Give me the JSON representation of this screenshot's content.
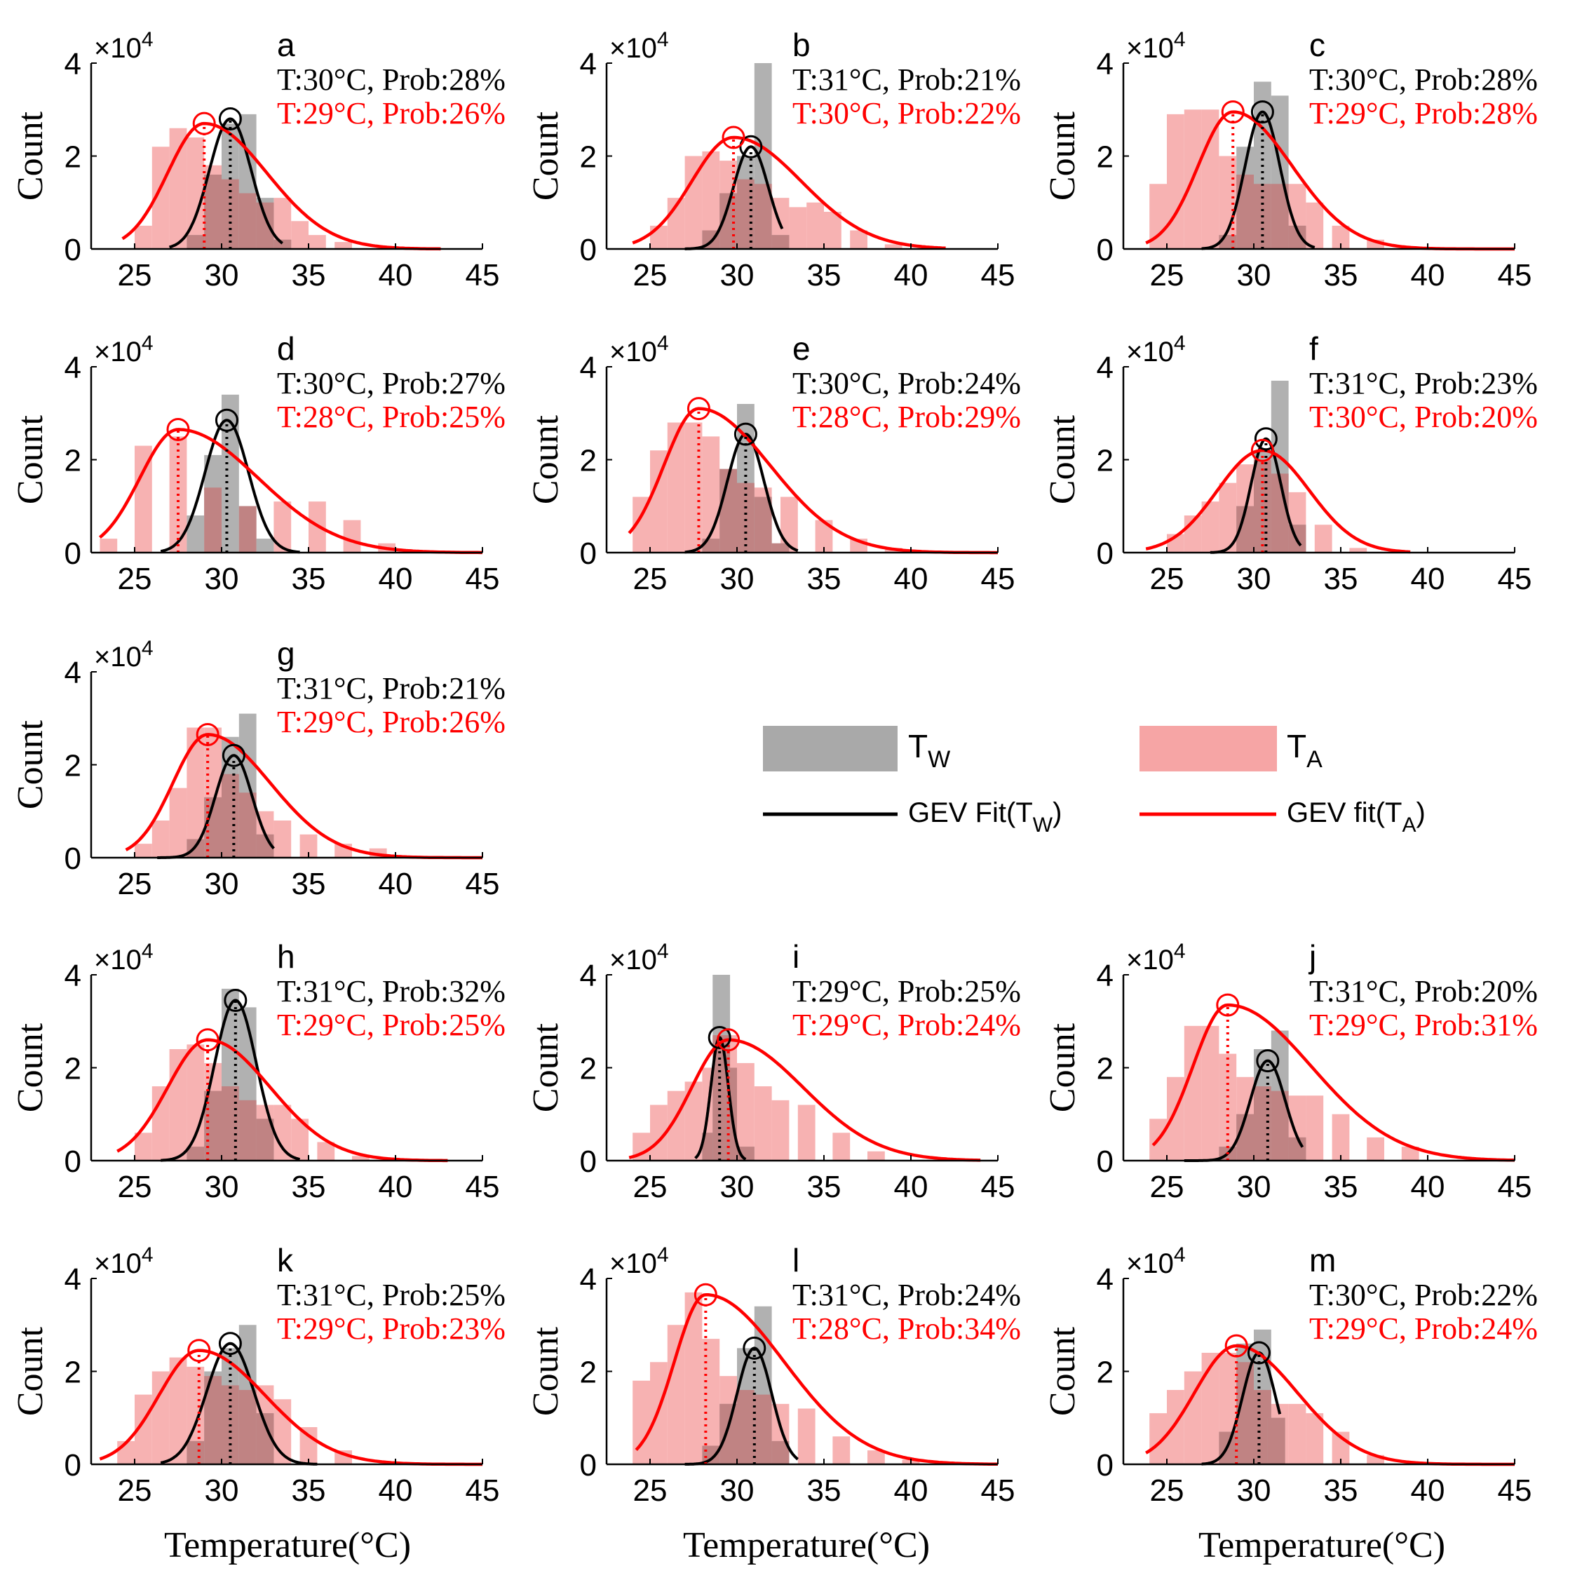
{
  "figure": {
    "xlabel": "Temperature(°C)",
    "ylabel": "Count",
    "exponent_base": "×10",
    "exponent_power": "4",
    "x_ticks": [
      "25",
      "30",
      "35",
      "40",
      "45"
    ],
    "y_ticks": [
      "0",
      "2",
      "4"
    ],
    "xlim": [
      22.5,
      45
    ],
    "ylim": [
      0,
      4
    ],
    "colors": {
      "tw_bar": "#a9a9a9",
      "ta_bar": "#f6a5a5",
      "overlap_bar": "#c37c7c",
      "tw_fit": "#000000",
      "ta_fit": "#ff0000"
    }
  },
  "legend": {
    "tw_bar_label": "T",
    "tw_bar_sub": "W",
    "ta_bar_label": "T",
    "ta_bar_sub": "A",
    "tw_fit_label": "GEV Fit(T",
    "tw_fit_sub": "W",
    "tw_fit_close": ")",
    "ta_fit_label": "GEV fit(T",
    "ta_fit_sub": "A",
    "ta_fit_close": ")"
  },
  "chart_data": [
    {
      "type": "bar",
      "letter": "a",
      "tw_text": "T:30°C, Prob:28%",
      "ta_text": "T:29°C, Prob:26%",
      "tw_mode": 30.5,
      "tw_peak": 2.8,
      "tw_sigma": 1.2,
      "tw_range": [
        27,
        33.5
      ],
      "ta_mode": 29.0,
      "ta_peak": 2.7,
      "ta_sl": 2.1,
      "ta_sr": 3.6,
      "ta_range": [
        24.3,
        42.6
      ],
      "tw_bars": [
        [
          28.5,
          0.3
        ],
        [
          29.5,
          1.6
        ],
        [
          30.5,
          2.7
        ],
        [
          31.5,
          2.9
        ],
        [
          32.5,
          1.1
        ],
        [
          33.5,
          0.2
        ]
      ],
      "ta_bars": [
        [
          25.5,
          0.5
        ],
        [
          26.5,
          2.2
        ],
        [
          27.5,
          2.6
        ],
        [
          28.5,
          2.4
        ],
        [
          29.5,
          1.8
        ],
        [
          30.5,
          1.5
        ],
        [
          31.5,
          1.2
        ],
        [
          32.5,
          1.0
        ],
        [
          33.5,
          1.1
        ],
        [
          34.5,
          0.6
        ],
        [
          35.5,
          0.3
        ],
        [
          37,
          0.15
        ]
      ]
    },
    {
      "type": "bar",
      "letter": "b",
      "tw_text": "T:31°C, Prob:21%",
      "ta_text": "T:30°C, Prob:22%",
      "tw_mode": 30.8,
      "tw_peak": 2.2,
      "tw_sigma": 1.0,
      "tw_range": [
        27,
        32.6
      ],
      "ta_mode": 29.8,
      "ta_peak": 2.4,
      "ta_sl": 2.4,
      "ta_sr": 3.9,
      "ta_range": [
        24,
        42
      ],
      "tw_bars": [
        [
          28.5,
          0.4
        ],
        [
          29.5,
          1.2
        ],
        [
          30.5,
          2.0
        ],
        [
          31.5,
          4.0
        ],
        [
          32.5,
          0.3
        ]
      ],
      "ta_bars": [
        [
          25.5,
          0.5
        ],
        [
          26.5,
          1.1
        ],
        [
          27.5,
          2.0
        ],
        [
          28.5,
          2.1
        ],
        [
          29.5,
          1.9
        ],
        [
          30.5,
          1.5
        ],
        [
          31.5,
          1.4
        ],
        [
          32.5,
          1.1
        ],
        [
          33.5,
          0.9
        ],
        [
          34.5,
          1.0
        ],
        [
          35.5,
          0.8
        ],
        [
          37,
          0.4
        ],
        [
          39,
          0.1
        ]
      ]
    },
    {
      "type": "bar",
      "letter": "c",
      "tw_text": "T:30°C, Prob:28%",
      "ta_text": "T:29°C, Prob:28%",
      "tw_mode": 30.5,
      "tw_peak": 2.95,
      "tw_sigma": 1.0,
      "tw_range": [
        27,
        33.5
      ],
      "ta_mode": 28.8,
      "ta_peak": 2.95,
      "ta_sl": 2.0,
      "ta_sr": 3.4,
      "ta_range": [
        23.8,
        45
      ],
      "tw_bars": [
        [
          28.5,
          0.3
        ],
        [
          29.5,
          2.2
        ],
        [
          30.5,
          3.6
        ],
        [
          31.5,
          3.3
        ],
        [
          32.5,
          0.5
        ]
      ],
      "ta_bars": [
        [
          24.5,
          1.4
        ],
        [
          25.5,
          2.9
        ],
        [
          26.5,
          3.0
        ],
        [
          27.5,
          3.0
        ],
        [
          28.5,
          2.0
        ],
        [
          29.5,
          1.6
        ],
        [
          30.5,
          1.4
        ],
        [
          31.5,
          1.4
        ],
        [
          32.5,
          1.4
        ],
        [
          33.5,
          1.0
        ],
        [
          35,
          0.5
        ],
        [
          37,
          0.2
        ]
      ]
    },
    {
      "type": "bar",
      "letter": "d",
      "tw_text": "T:30°C, Prob:27%",
      "ta_text": "T:28°C, Prob:25%",
      "tw_mode": 30.3,
      "tw_peak": 2.85,
      "tw_sigma": 1.25,
      "tw_range": [
        26.5,
        34.5
      ],
      "ta_mode": 27.5,
      "ta_peak": 2.65,
      "ta_sl": 2.2,
      "ta_sr": 4.6,
      "ta_range": [
        23,
        45
      ],
      "tw_bars": [
        [
          28.5,
          0.8
        ],
        [
          29.5,
          2.1
        ],
        [
          30.5,
          3.4
        ],
        [
          31.5,
          1.0
        ],
        [
          32.5,
          0.3
        ]
      ],
      "ta_bars": [
        [
          23.5,
          0.3
        ],
        [
          25.5,
          2.3
        ],
        [
          27.5,
          2.5
        ],
        [
          29.5,
          1.4
        ],
        [
          31.5,
          1.0
        ],
        [
          33.5,
          1.1
        ],
        [
          35.5,
          1.1
        ],
        [
          37.5,
          0.7
        ],
        [
          39.5,
          0.2
        ]
      ]
    },
    {
      "type": "bar",
      "letter": "e",
      "tw_text": "T:30°C, Prob:24%",
      "ta_text": "T:28°C, Prob:29%",
      "tw_mode": 30.5,
      "tw_peak": 2.55,
      "tw_sigma": 1.05,
      "tw_range": [
        27,
        33.5
      ],
      "ta_mode": 27.8,
      "ta_peak": 3.1,
      "ta_sl": 2.0,
      "ta_sr": 4.1,
      "ta_range": [
        23.8,
        45
      ],
      "tw_bars": [
        [
          28.5,
          0.3
        ],
        [
          29.5,
          1.8
        ],
        [
          30.5,
          3.2
        ],
        [
          31.5,
          1.2
        ],
        [
          32.5,
          0.2
        ]
      ],
      "ta_bars": [
        [
          24.5,
          1.2
        ],
        [
          25.5,
          2.2
        ],
        [
          26.5,
          2.8
        ],
        [
          27.5,
          2.8
        ],
        [
          28.5,
          2.5
        ],
        [
          29.5,
          1.8
        ],
        [
          30.5,
          1.5
        ],
        [
          31.5,
          1.4
        ],
        [
          33,
          1.2
        ],
        [
          35,
          0.7
        ],
        [
          37,
          0.3
        ],
        [
          39,
          0.1
        ]
      ]
    },
    {
      "type": "bar",
      "letter": "f",
      "tw_text": "T:31°C, Prob:23%",
      "ta_text": "T:30°C, Prob:20%",
      "tw_mode": 30.7,
      "tw_peak": 2.45,
      "tw_sigma": 0.85,
      "tw_range": [
        27.5,
        32.7
      ],
      "ta_mode": 30.5,
      "ta_peak": 2.2,
      "ta_sl": 2.6,
      "ta_sr": 2.7,
      "ta_range": [
        23.8,
        39
      ],
      "tw_bars": [
        [
          29.5,
          1.0
        ],
        [
          30.5,
          2.2
        ],
        [
          31.5,
          3.7
        ],
        [
          32.5,
          0.6
        ]
      ],
      "ta_bars": [
        [
          25.5,
          0.4
        ],
        [
          26.5,
          0.8
        ],
        [
          27.5,
          1.1
        ],
        [
          28.5,
          1.5
        ],
        [
          29.5,
          1.9
        ],
        [
          30.5,
          2.0
        ],
        [
          31.5,
          1.7
        ],
        [
          32.5,
          1.3
        ],
        [
          34,
          0.6
        ],
        [
          36,
          0.1
        ]
      ]
    },
    {
      "type": "bar",
      "letter": "g",
      "tw_text": "T:31°C, Prob:21%",
      "ta_text": "T:29°C, Prob:26%",
      "tw_mode": 30.7,
      "tw_peak": 2.2,
      "tw_sigma": 1.05,
      "tw_range": [
        26.3,
        33
      ],
      "ta_mode": 29.2,
      "ta_peak": 2.65,
      "ta_sl": 2.0,
      "ta_sr": 3.6,
      "ta_range": [
        24.5,
        45
      ],
      "tw_bars": [
        [
          28.5,
          0.4
        ],
        [
          29.5,
          1.3
        ],
        [
          30.5,
          2.6
        ],
        [
          31.5,
          3.1
        ],
        [
          32.5,
          0.5
        ]
      ],
      "ta_bars": [
        [
          25.5,
          0.3
        ],
        [
          26.5,
          0.8
        ],
        [
          27.5,
          1.5
        ],
        [
          28.5,
          2.8
        ],
        [
          29.5,
          2.8
        ],
        [
          30.5,
          1.8
        ],
        [
          31.5,
          1.4
        ],
        [
          32.5,
          1.0
        ],
        [
          33.5,
          0.8
        ],
        [
          35,
          0.5
        ],
        [
          37,
          0.3
        ],
        [
          39,
          0.2
        ]
      ]
    },
    {
      "type": "bar",
      "letter": "h",
      "tw_text": "T:31°C, Prob:32%",
      "ta_text": "T:29°C, Prob:25%",
      "tw_mode": 30.8,
      "tw_peak": 3.45,
      "tw_sigma": 1.2,
      "tw_range": [
        26.5,
        34.5
      ],
      "ta_mode": 29.2,
      "ta_peak": 2.6,
      "ta_sl": 2.3,
      "ta_sr": 3.6,
      "ta_range": [
        24,
        43
      ],
      "tw_bars": [
        [
          28.5,
          0.3
        ],
        [
          29.5,
          1.5
        ],
        [
          30.5,
          3.7
        ],
        [
          31.5,
          3.3
        ],
        [
          32.5,
          0.9
        ]
      ],
      "ta_bars": [
        [
          25.5,
          0.6
        ],
        [
          26.5,
          1.6
        ],
        [
          27.5,
          2.4
        ],
        [
          28.5,
          2.5
        ],
        [
          29.5,
          2.1
        ],
        [
          30.5,
          1.6
        ],
        [
          31.5,
          1.3
        ],
        [
          32.5,
          1.2
        ],
        [
          33.5,
          1.2
        ],
        [
          34.5,
          0.9
        ],
        [
          36,
          0.4
        ],
        [
          38,
          0.1
        ]
      ]
    },
    {
      "type": "bar",
      "letter": "i",
      "tw_text": "T:29°C, Prob:25%",
      "ta_text": "T:29°C, Prob:24%",
      "tw_mode": 29.0,
      "tw_peak": 2.65,
      "tw_sigma": 0.5,
      "tw_range": [
        27.6,
        30.5
      ],
      "ta_mode": 29.5,
      "ta_peak": 2.6,
      "ta_sl": 2.1,
      "ta_sr": 4.3,
      "ta_range": [
        23.8,
        44
      ],
      "tw_bars": [
        [
          28.5,
          0.6
        ],
        [
          29.1,
          4.0
        ],
        [
          29.5,
          2.0
        ],
        [
          30.5,
          0.3
        ]
      ],
      "ta_bars": [
        [
          24.5,
          0.6
        ],
        [
          25.5,
          1.2
        ],
        [
          26.5,
          1.5
        ],
        [
          27.5,
          1.7
        ],
        [
          28.5,
          2.0
        ],
        [
          29.5,
          2.7
        ],
        [
          30.5,
          2.1
        ],
        [
          31.5,
          1.6
        ],
        [
          32.5,
          1.3
        ],
        [
          34,
          1.2
        ],
        [
          36,
          0.6
        ],
        [
          38,
          0.2
        ]
      ]
    },
    {
      "type": "bar",
      "letter": "j",
      "tw_text": "T:31°C, Prob:20%",
      "ta_text": "T:29°C, Prob:31%",
      "tw_mode": 30.8,
      "tw_peak": 2.15,
      "tw_sigma": 1.0,
      "tw_range": [
        26,
        32.8
      ],
      "ta_mode": 28.5,
      "ta_peak": 3.35,
      "ta_sl": 2.0,
      "ta_sr": 4.8,
      "ta_range": [
        24.2,
        45
      ],
      "tw_bars": [
        [
          28.5,
          0.3
        ],
        [
          29.5,
          1.0
        ],
        [
          30.5,
          2.4
        ],
        [
          31.5,
          2.8
        ],
        [
          32.5,
          0.5
        ]
      ],
      "ta_bars": [
        [
          24.5,
          0.9
        ],
        [
          25.5,
          1.8
        ],
        [
          26.5,
          2.9
        ],
        [
          27.5,
          2.9
        ],
        [
          28.5,
          2.3
        ],
        [
          29.5,
          1.8
        ],
        [
          30.5,
          1.6
        ],
        [
          31.5,
          1.5
        ],
        [
          32.5,
          1.4
        ],
        [
          33.5,
          1.4
        ],
        [
          35,
          1.0
        ],
        [
          37,
          0.5
        ],
        [
          39,
          0.3
        ]
      ]
    },
    {
      "type": "bar",
      "letter": "k",
      "tw_text": "T:31°C, Prob:25%",
      "ta_text": "T:29°C, Prob:23%",
      "tw_mode": 30.5,
      "tw_peak": 2.6,
      "tw_sigma": 1.35,
      "tw_range": [
        26.5,
        35.5
      ],
      "ta_mode": 28.7,
      "ta_peak": 2.45,
      "ta_sl": 2.3,
      "ta_sr": 3.8,
      "ta_range": [
        23,
        45
      ],
      "tw_bars": [
        [
          28.5,
          0.5
        ],
        [
          29.5,
          2.0
        ],
        [
          30.5,
          2.5
        ],
        [
          31.5,
          3.0
        ],
        [
          32.5,
          1.1
        ]
      ],
      "ta_bars": [
        [
          24.5,
          0.5
        ],
        [
          25.5,
          1.5
        ],
        [
          26.5,
          2.0
        ],
        [
          27.5,
          2.3
        ],
        [
          28.5,
          2.1
        ],
        [
          29.5,
          1.9
        ],
        [
          30.5,
          1.7
        ],
        [
          31.5,
          1.6
        ],
        [
          32.5,
          1.7
        ],
        [
          33.5,
          1.4
        ],
        [
          35,
          0.8
        ],
        [
          37,
          0.3
        ]
      ]
    },
    {
      "type": "bar",
      "letter": "l",
      "tw_text": "T:31°C, Prob:24%",
      "ta_text": "T:28°C, Prob:34%",
      "tw_mode": 31.0,
      "tw_peak": 2.5,
      "tw_sigma": 1.0,
      "tw_range": [
        27,
        33.5
      ],
      "ta_mode": 28.2,
      "ta_peak": 3.65,
      "ta_sl": 1.8,
      "ta_sr": 4.5,
      "ta_range": [
        24.2,
        45
      ],
      "tw_bars": [
        [
          28.5,
          0.4
        ],
        [
          29.5,
          1.3
        ],
        [
          30.5,
          2.5
        ],
        [
          31.5,
          3.4
        ],
        [
          32.5,
          0.5
        ]
      ],
      "ta_bars": [
        [
          24.5,
          1.8
        ],
        [
          25.5,
          2.2
        ],
        [
          26.5,
          3.0
        ],
        [
          27.5,
          3.7
        ],
        [
          28.5,
          2.7
        ],
        [
          29.5,
          1.9
        ],
        [
          30.5,
          1.6
        ],
        [
          31.5,
          1.5
        ],
        [
          32.5,
          1.3
        ],
        [
          34,
          1.2
        ],
        [
          36,
          0.6
        ],
        [
          38,
          0.3
        ],
        [
          40,
          0.1
        ]
      ]
    },
    {
      "type": "bar",
      "letter": "m",
      "tw_text": "T:30°C, Prob:22%",
      "ta_text": "T:29°C, Prob:24%",
      "tw_mode": 30.3,
      "tw_peak": 2.4,
      "tw_sigma": 0.95,
      "tw_range": [
        27,
        31.5
      ],
      "ta_mode": 29.0,
      "ta_peak": 2.55,
      "ta_sl": 2.4,
      "ta_sr": 3.5,
      "ta_range": [
        23.8,
        45
      ],
      "tw_bars": [
        [
          28.5,
          0.7
        ],
        [
          29.5,
          2.6
        ],
        [
          30.5,
          2.9
        ],
        [
          31.3,
          1.0
        ]
      ],
      "ta_bars": [
        [
          24.5,
          1.1
        ],
        [
          25.5,
          1.6
        ],
        [
          26.5,
          2.0
        ],
        [
          27.5,
          2.4
        ],
        [
          28.5,
          2.4
        ],
        [
          29.5,
          2.2
        ],
        [
          30.5,
          1.6
        ],
        [
          31.5,
          1.3
        ],
        [
          32.5,
          1.3
        ],
        [
          33.5,
          1.1
        ],
        [
          35,
          0.7
        ],
        [
          37,
          0.2
        ]
      ]
    }
  ]
}
